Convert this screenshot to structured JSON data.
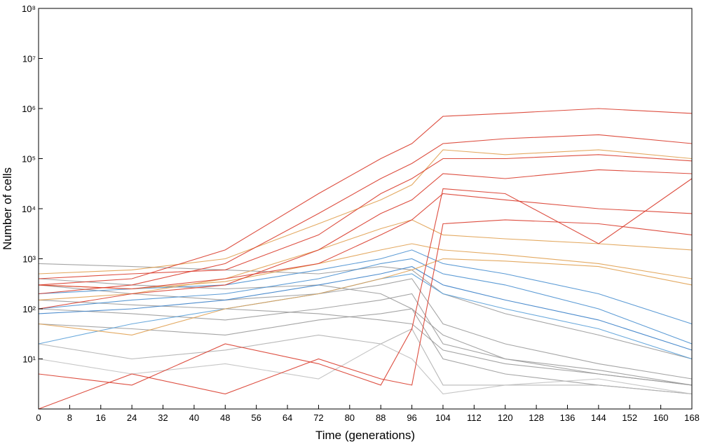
{
  "chart_data": {
    "type": "line",
    "x_label": "Time (generations)",
    "y_label": "Number of cells",
    "x": [
      0,
      24,
      48,
      72,
      88,
      96,
      104,
      120,
      144,
      168
    ],
    "xlim": [
      0,
      168
    ],
    "xticks": [
      0,
      8,
      16,
      24,
      32,
      40,
      48,
      56,
      64,
      72,
      80,
      88,
      96,
      104,
      112,
      120,
      128,
      136,
      144,
      152,
      160,
      168
    ],
    "ylim": [
      1,
      100000000
    ],
    "ylog": true,
    "yticks": [
      {
        "value": 10,
        "label": "10¹"
      },
      {
        "value": 100,
        "label": "10²"
      },
      {
        "value": 1000,
        "label": "10³"
      },
      {
        "value": 10000,
        "label": "10⁴"
      },
      {
        "value": 100000,
        "label": "10⁵"
      },
      {
        "value": 1000000,
        "label": "10⁶"
      },
      {
        "value": 10000000,
        "label": "10⁷"
      },
      {
        "value": 100000000,
        "label": "10⁸"
      }
    ],
    "grid": false,
    "series": [
      {
        "color": "#9a9a9a",
        "values": [
          800,
          700,
          600,
          500,
          700,
          600,
          200,
          80,
          30,
          10
        ]
      },
      {
        "color": "#9a9a9a",
        "values": [
          300,
          200,
          150,
          200,
          300,
          400,
          50,
          20,
          8,
          4
        ]
      },
      {
        "color": "#9a9a9a",
        "values": [
          100,
          80,
          60,
          100,
          150,
          200,
          20,
          10,
          5,
          3
        ]
      },
      {
        "color": "#9a9a9a",
        "values": [
          50,
          40,
          30,
          60,
          80,
          100,
          10,
          5,
          3,
          2
        ]
      },
      {
        "color": "#b0b0b0",
        "values": [
          20,
          10,
          15,
          30,
          20,
          40,
          3,
          3,
          3,
          2
        ]
      },
      {
        "color": "#c0c0c0",
        "values": [
          10,
          5,
          8,
          4,
          20,
          10,
          2,
          3,
          4,
          2
        ]
      },
      {
        "color": "#9a9a9a",
        "values": [
          400,
          300,
          250,
          300,
          200,
          100,
          30,
          10,
          6,
          3
        ]
      },
      {
        "color": "#9a9a9a",
        "values": [
          150,
          120,
          100,
          80,
          60,
          50,
          15,
          8,
          5,
          3
        ]
      },
      {
        "color": "#4a90d0",
        "values": [
          200,
          250,
          300,
          600,
          1000,
          1500,
          800,
          500,
          200,
          50
        ]
      },
      {
        "color": "#4a90d0",
        "values": [
          100,
          150,
          200,
          400,
          800,
          1000,
          500,
          300,
          100,
          20
        ]
      },
      {
        "color": "#3a80c8",
        "values": [
          80,
          100,
          150,
          300,
          500,
          700,
          300,
          150,
          60,
          15
        ]
      },
      {
        "color": "#5aa0d8",
        "values": [
          20,
          50,
          100,
          200,
          400,
          500,
          200,
          100,
          40,
          10
        ]
      },
      {
        "color": "#e0a050",
        "values": [
          500,
          600,
          1000,
          5000,
          15000,
          30000,
          150000,
          120000,
          150000,
          100000
        ]
      },
      {
        "color": "#e0a050",
        "values": [
          150,
          200,
          400,
          1500,
          4000,
          6000,
          3000,
          2500,
          2000,
          1500
        ]
      },
      {
        "color": "#e0a050",
        "values": [
          300,
          250,
          350,
          800,
          1500,
          2000,
          1500,
          1200,
          800,
          400
        ]
      },
      {
        "color": "#e0a050",
        "values": [
          50,
          30,
          100,
          200,
          400,
          600,
          1000,
          900,
          700,
          300
        ]
      },
      {
        "color": "#d93b2b",
        "values": [
          300,
          400,
          1500,
          20000,
          100000,
          200000,
          700000,
          800000,
          1000000,
          800000
        ]
      },
      {
        "color": "#d93b2b",
        "values": [
          200,
          300,
          800,
          8000,
          40000,
          80000,
          200000,
          250000,
          300000,
          200000
        ]
      },
      {
        "color": "#d93b2b",
        "values": [
          400,
          500,
          600,
          3000,
          20000,
          40000,
          100000,
          100000,
          120000,
          90000
        ]
      },
      {
        "color": "#d93b2b",
        "values": [
          100,
          200,
          300,
          1500,
          8000,
          15000,
          50000,
          40000,
          60000,
          50000
        ]
      },
      {
        "color": "#d93b2b",
        "values": [
          300,
          250,
          400,
          800,
          3000,
          6000,
          20000,
          15000,
          10000,
          8000
        ]
      },
      {
        "color": "#d93b2b",
        "values": [
          5,
          3,
          20,
          8,
          3,
          40,
          25000,
          20000,
          2000,
          40000
        ]
      },
      {
        "color": "#d93b2b",
        "values": [
          1,
          5,
          2,
          10,
          4,
          3,
          5000,
          6000,
          5000,
          3000
        ]
      }
    ]
  }
}
